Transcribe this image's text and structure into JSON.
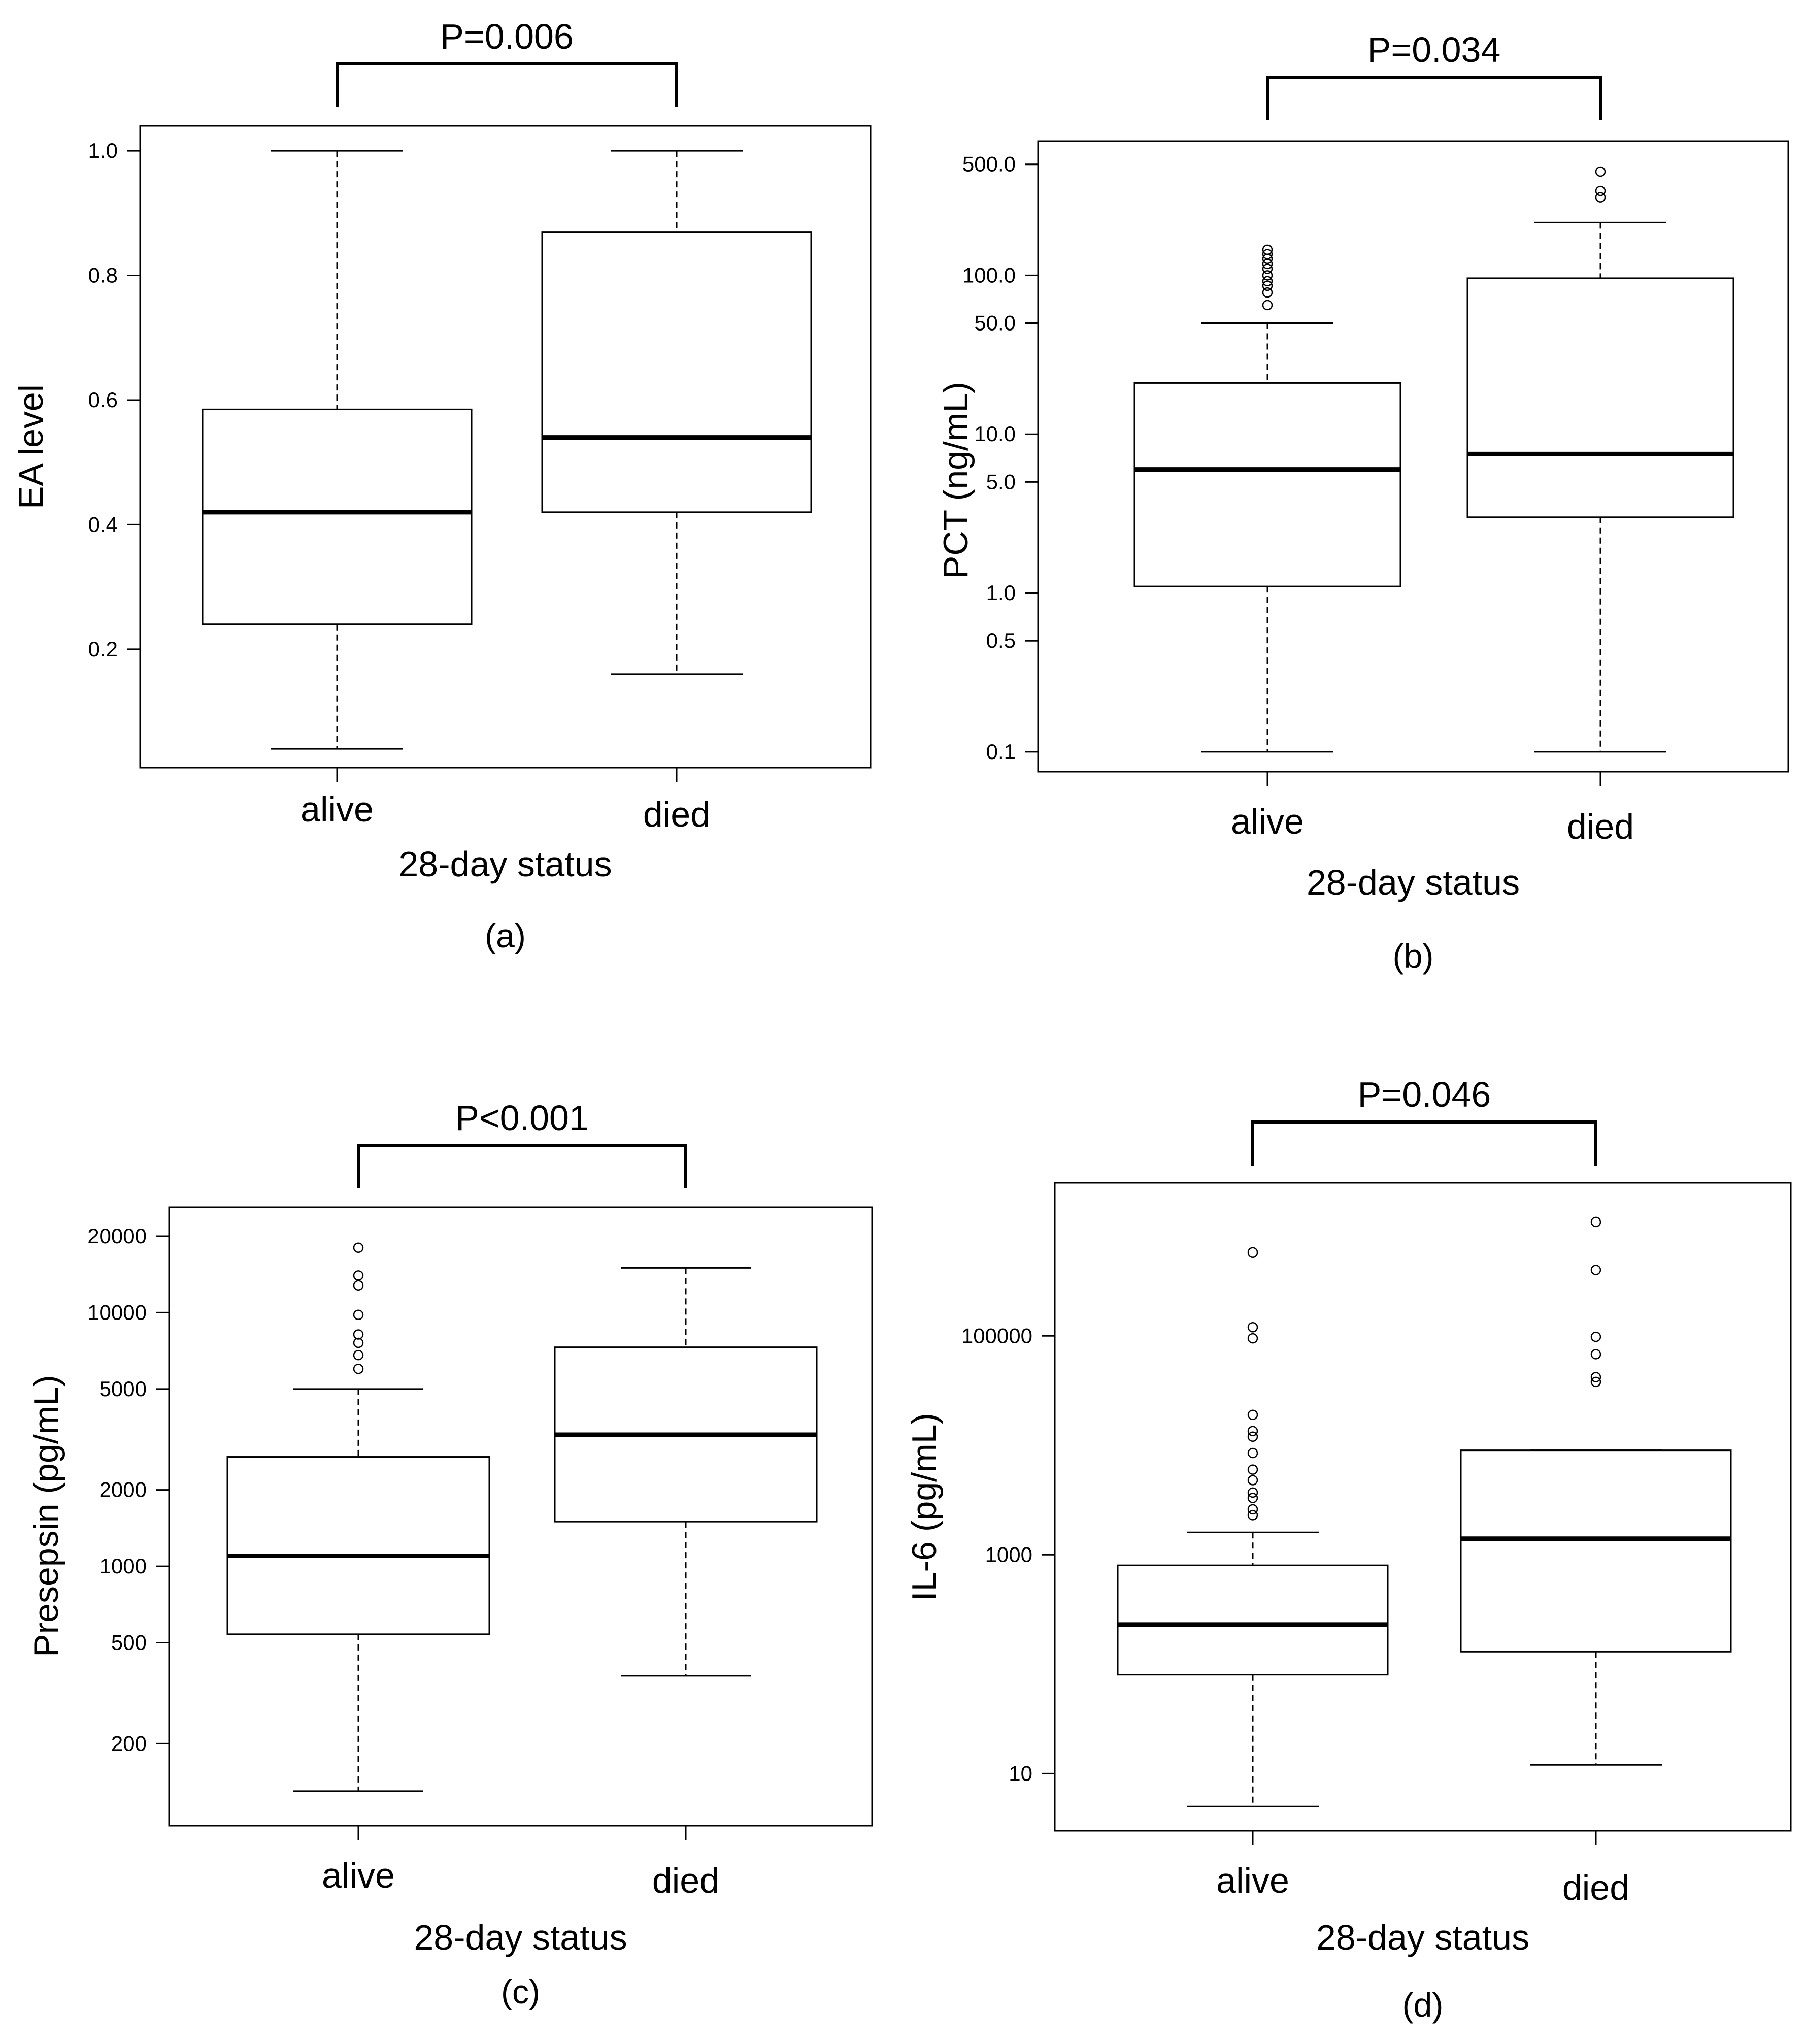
{
  "chart_data": [
    {
      "type": "box",
      "panel_label": "(a)",
      "ylabel": "EA level",
      "xlabel": "28-day status",
      "scale": "linear",
      "ylim": [
        0.01,
        1.04
      ],
      "yticks": [
        0.2,
        0.4,
        0.6,
        0.8,
        1.0
      ],
      "ytick_labels": [
        "0.2",
        "0.4",
        "0.6",
        "0.8",
        "1.0"
      ],
      "significance": "P=0.006",
      "categories": [
        "alive",
        "died"
      ],
      "groups": [
        {
          "name": "alive",
          "whisker_low": 0.04,
          "q1": 0.24,
          "median": 0.42,
          "q3": 0.585,
          "whisker_high": 1.0,
          "outliers": []
        },
        {
          "name": "died",
          "whisker_low": 0.16,
          "q1": 0.42,
          "median": 0.54,
          "q3": 0.87,
          "whisker_high": 1.0,
          "outliers": []
        }
      ]
    },
    {
      "type": "box",
      "panel_label": "(b)",
      "ylabel": "PCT  (ng/mL)",
      "xlabel": "28-day status",
      "scale": "log",
      "ylim": [
        0.075,
        700
      ],
      "yticks": [
        0.1,
        0.5,
        1,
        5,
        10,
        50,
        100,
        500
      ],
      "ytick_labels": [
        "0.1",
        "0.5",
        "1.0",
        "5.0",
        "10.0",
        "50.0",
        "100.0",
        "500.0"
      ],
      "significance": "P=0.034",
      "categories": [
        "alive",
        "died"
      ],
      "groups": [
        {
          "name": "alive",
          "whisker_low": 0.1,
          "q1": 1.1,
          "median": 6.0,
          "q3": 21.0,
          "whisker_high": 50.0,
          "outliers": [
            65,
            78,
            86,
            92,
            100,
            110,
            118,
            127,
            136,
            145
          ]
        },
        {
          "name": "died",
          "whisker_low": 0.1,
          "q1": 3.0,
          "median": 7.5,
          "q3": 96.0,
          "whisker_high": 215.0,
          "outliers": [
            310,
            340,
            450
          ]
        }
      ]
    },
    {
      "type": "box",
      "panel_label": "(c)",
      "ylabel": "Presepsin  (pg/mL)",
      "xlabel": "28-day status",
      "scale": "log",
      "ylim": [
        95,
        26000
      ],
      "yticks": [
        200,
        500,
        1000,
        2000,
        5000,
        10000,
        20000
      ],
      "ytick_labels": [
        "200",
        "500",
        "1000",
        "2000",
        "5000",
        "10000",
        "20000"
      ],
      "significance": "P<0.001",
      "categories": [
        "alive",
        "died"
      ],
      "groups": [
        {
          "name": "alive",
          "whisker_low": 130,
          "q1": 540,
          "median": 1100,
          "q3": 2700,
          "whisker_high": 5000,
          "outliers": [
            6000,
            6800,
            7600,
            8200,
            9800,
            12800,
            14000,
            18000
          ]
        },
        {
          "name": "died",
          "whisker_low": 370,
          "q1": 1500,
          "median": 3300,
          "q3": 7300,
          "whisker_high": 15000,
          "outliers": []
        }
      ]
    },
    {
      "type": "box",
      "panel_label": "(d)",
      "ylabel": "IL-6  (pg/mL)",
      "xlabel": "28-day status",
      "scale": "log",
      "ylim": [
        3,
        2500000
      ],
      "yticks": [
        10,
        1000,
        100000
      ],
      "ytick_labels": [
        "10",
        "1000",
        "100000"
      ],
      "significance": "P=0.046",
      "categories": [
        "alive",
        "died"
      ],
      "groups": [
        {
          "name": "alive",
          "whisker_low": 5,
          "q1": 80,
          "median": 230,
          "q3": 800,
          "whisker_high": 1600,
          "outliers": [
            2300,
            2600,
            3300,
            3700,
            4800,
            6000,
            8500,
            12000,
            13500,
            19000,
            120000,
            95000,
            580000
          ]
        },
        {
          "name": "died",
          "whisker_low": 12,
          "q1": 130,
          "median": 1400,
          "q3": 9000,
          "whisker_high": 9000,
          "outliers": [
            38000,
            42000,
            68000,
            98000,
            400000,
            1100000
          ]
        }
      ]
    }
  ]
}
